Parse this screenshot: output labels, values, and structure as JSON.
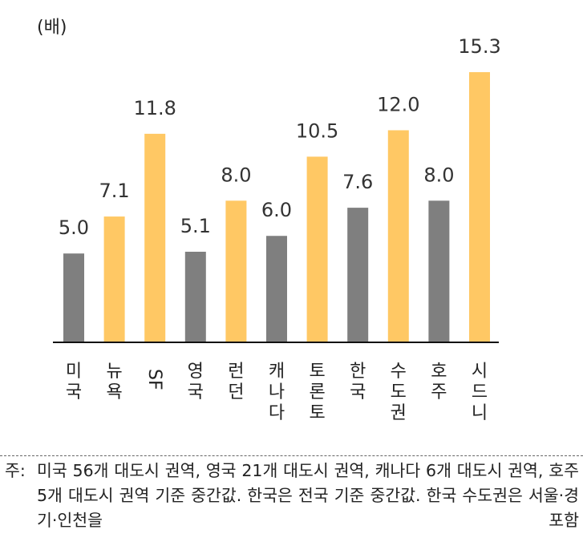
{
  "chart_data": {
    "type": "bar",
    "unit_label": "(배)",
    "categories": [
      "미국",
      "뉴욕",
      "SF",
      "영국",
      "런던",
      "캐나다",
      "토론토",
      "한국",
      "수도권",
      "호주",
      "시드니"
    ],
    "values": [
      5.0,
      7.1,
      11.8,
      5.1,
      8.0,
      6.0,
      10.5,
      7.6,
      12.0,
      8.0,
      15.3
    ],
    "value_labels": [
      "5.0",
      "7.1",
      "11.8",
      "5.1",
      "8.0",
      "6.0",
      "10.5",
      "7.6",
      "12.0",
      "8.0",
      "15.3"
    ],
    "bar_kinds": [
      "national",
      "city",
      "city",
      "national",
      "city",
      "national",
      "city",
      "national",
      "city",
      "national",
      "city"
    ],
    "colors": {
      "national": "#7f7f7f",
      "city": "#ffc864",
      "axis": "#111111"
    },
    "ylim": [
      0,
      15.3
    ],
    "grid": false,
    "legend": "none"
  },
  "note": {
    "prefix": "주:",
    "text": "미국 56개 대도시 권역, 영국 21개 대도시 권역, 캐나다 6개 대도시 권역, 호주 5개 대도시 권역 기준 중간값. 한국은 전국 기준 중간값. 한국 수도권은 서울·경기·인천을 포함"
  }
}
